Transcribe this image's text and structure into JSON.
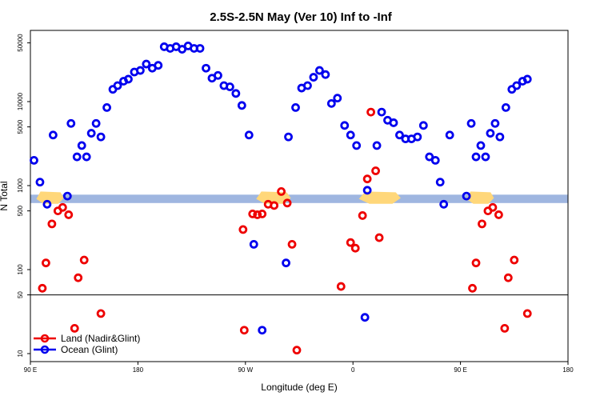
{
  "chart_data": {
    "type": "scatter",
    "title": "2.5S-2.5N May (Ver 10)   Inf to -Inf",
    "xlabel": "Longitude (deg E)",
    "ylabel": "N Total",
    "x_axis": {
      "range": [
        90,
        540
      ],
      "ticks": [
        {
          "value": 90,
          "label": "90 E"
        },
        {
          "value": 180,
          "label": "180"
        },
        {
          "value": 270,
          "label": "90 W"
        },
        {
          "value": 360,
          "label": "0"
        },
        {
          "value": 450,
          "label": "90 E"
        },
        {
          "value": 540,
          "label": "180"
        }
      ]
    },
    "y_axis": {
      "scale": "log",
      "range": [
        8,
        80000
      ],
      "break_at": 50,
      "ticks": [
        {
          "value": 10,
          "label": "10"
        },
        {
          "value": 50,
          "label": "50"
        },
        {
          "value": 100,
          "label": "100"
        },
        {
          "value": 500,
          "label": "500"
        },
        {
          "value": 1000,
          "label": "1000"
        },
        {
          "value": 5000,
          "label": "5000"
        },
        {
          "value": 10000,
          "label": "10000"
        },
        {
          "value": 50000,
          "label": "50000"
        }
      ]
    },
    "series": [
      {
        "name": "Land (Nadir&Glint)",
        "color": "#ee0000",
        "points": [
          {
            "x": 100,
            "y": 60
          },
          {
            "x": 103,
            "y": 120
          },
          {
            "x": 108,
            "y": 350
          },
          {
            "x": 113,
            "y": 500
          },
          {
            "x": 117,
            "y": 550
          },
          {
            "x": 122,
            "y": 450
          },
          {
            "x": 130,
            "y": 80
          },
          {
            "x": 135,
            "y": 130
          },
          {
            "x": 127,
            "y": 20
          },
          {
            "x": 149,
            "y": 30
          },
          {
            "x": 268,
            "y": 300
          },
          {
            "x": 276,
            "y": 460
          },
          {
            "x": 280,
            "y": 450
          },
          {
            "x": 284,
            "y": 460
          },
          {
            "x": 289,
            "y": 600
          },
          {
            "x": 294,
            "y": 580
          },
          {
            "x": 300,
            "y": 850
          },
          {
            "x": 305,
            "y": 620
          },
          {
            "x": 309,
            "y": 200
          },
          {
            "x": 269,
            "y": 19
          },
          {
            "x": 313,
            "y": 11
          },
          {
            "x": 350,
            "y": 63
          },
          {
            "x": 358,
            "y": 210
          },
          {
            "x": 362,
            "y": 180
          },
          {
            "x": 368,
            "y": 440
          },
          {
            "x": 372,
            "y": 1200
          },
          {
            "x": 375,
            "y": 7500
          },
          {
            "x": 379,
            "y": 1500
          },
          {
            "x": 382,
            "y": 240
          },
          {
            "x": 460,
            "y": 60
          },
          {
            "x": 463,
            "y": 120
          },
          {
            "x": 468,
            "y": 350
          },
          {
            "x": 473,
            "y": 500
          },
          {
            "x": 477,
            "y": 550
          },
          {
            "x": 482,
            "y": 450
          },
          {
            "x": 490,
            "y": 80
          },
          {
            "x": 495,
            "y": 130
          },
          {
            "x": 487,
            "y": 20
          },
          {
            "x": 506,
            "y": 30
          }
        ]
      },
      {
        "name": "Ocean (Glint)",
        "color": "#0000ee",
        "points": [
          {
            "x": 93,
            "y": 2000
          },
          {
            "x": 98,
            "y": 1100
          },
          {
            "x": 104,
            "y": 600
          },
          {
            "x": 109,
            "y": 4000
          },
          {
            "x": 121,
            "y": 750
          },
          {
            "x": 124,
            "y": 5500
          },
          {
            "x": 129,
            "y": 2200
          },
          {
            "x": 133,
            "y": 3000
          },
          {
            "x": 137,
            "y": 2200
          },
          {
            "x": 141,
            "y": 4200
          },
          {
            "x": 145,
            "y": 5500
          },
          {
            "x": 149,
            "y": 3800
          },
          {
            "x": 154,
            "y": 8500
          },
          {
            "x": 159,
            "y": 14000
          },
          {
            "x": 163,
            "y": 15500
          },
          {
            "x": 168,
            "y": 17500
          },
          {
            "x": 172,
            "y": 18500
          },
          {
            "x": 177,
            "y": 22500
          },
          {
            "x": 182,
            "y": 23500
          },
          {
            "x": 187,
            "y": 28000
          },
          {
            "x": 192,
            "y": 25000
          },
          {
            "x": 197,
            "y": 27000
          },
          {
            "x": 202,
            "y": 45000
          },
          {
            "x": 207,
            "y": 43000
          },
          {
            "x": 212,
            "y": 45000
          },
          {
            "x": 217,
            "y": 42000
          },
          {
            "x": 222,
            "y": 46000
          },
          {
            "x": 227,
            "y": 43000
          },
          {
            "x": 232,
            "y": 43000
          },
          {
            "x": 237,
            "y": 25000
          },
          {
            "x": 242,
            "y": 19000
          },
          {
            "x": 247,
            "y": 20500
          },
          {
            "x": 252,
            "y": 15500
          },
          {
            "x": 257,
            "y": 15000
          },
          {
            "x": 262,
            "y": 12500
          },
          {
            "x": 267,
            "y": 9000
          },
          {
            "x": 273,
            "y": 4000
          },
          {
            "x": 277,
            "y": 200
          },
          {
            "x": 304,
            "y": 120
          },
          {
            "x": 306,
            "y": 3800
          },
          {
            "x": 312,
            "y": 8500
          },
          {
            "x": 317,
            "y": 14500
          },
          {
            "x": 322,
            "y": 15500
          },
          {
            "x": 327,
            "y": 19500
          },
          {
            "x": 332,
            "y": 23500
          },
          {
            "x": 337,
            "y": 21000
          },
          {
            "x": 342,
            "y": 9500
          },
          {
            "x": 347,
            "y": 11000
          },
          {
            "x": 353,
            "y": 5200
          },
          {
            "x": 358,
            "y": 4000
          },
          {
            "x": 363,
            "y": 3000
          },
          {
            "x": 372,
            "y": 880
          },
          {
            "x": 380,
            "y": 3000
          },
          {
            "x": 384,
            "y": 7500
          },
          {
            "x": 389,
            "y": 6000
          },
          {
            "x": 394,
            "y": 5600
          },
          {
            "x": 399,
            "y": 4000
          },
          {
            "x": 404,
            "y": 3600
          },
          {
            "x": 409,
            "y": 3600
          },
          {
            "x": 414,
            "y": 3800
          },
          {
            "x": 419,
            "y": 5200
          },
          {
            "x": 424,
            "y": 2200
          },
          {
            "x": 429,
            "y": 2000
          },
          {
            "x": 433,
            "y": 1100
          },
          {
            "x": 436,
            "y": 600
          },
          {
            "x": 441,
            "y": 4000
          },
          {
            "x": 455,
            "y": 750
          },
          {
            "x": 459,
            "y": 5500
          },
          {
            "x": 463,
            "y": 2200
          },
          {
            "x": 467,
            "y": 3000
          },
          {
            "x": 471,
            "y": 2200
          },
          {
            "x": 475,
            "y": 4200
          },
          {
            "x": 479,
            "y": 5500
          },
          {
            "x": 483,
            "y": 3800
          },
          {
            "x": 488,
            "y": 8500
          },
          {
            "x": 493,
            "y": 14000
          },
          {
            "x": 497,
            "y": 15500
          },
          {
            "x": 502,
            "y": 17500
          },
          {
            "x": 506,
            "y": 18500
          },
          {
            "x": 370,
            "y": 27
          },
          {
            "x": 284,
            "y": 19
          }
        ]
      }
    ],
    "legend": {
      "position": "bottom-left",
      "entries": [
        "Land (Nadir&Glint)",
        "Ocean (Glint)"
      ]
    },
    "band": {
      "y_low": 620,
      "y_high": 780,
      "ocean_color": "#9fb6e0",
      "land_color": "#ffd77a",
      "description": "equatorial strip map: ocean blue, land yellow"
    },
    "band_land": [
      {
        "x_start": 95,
        "x_end": 118
      },
      {
        "x_start": 279,
        "x_end": 308
      },
      {
        "x_start": 365,
        "x_end": 400
      },
      {
        "x_start": 455,
        "x_end": 478
      }
    ]
  }
}
